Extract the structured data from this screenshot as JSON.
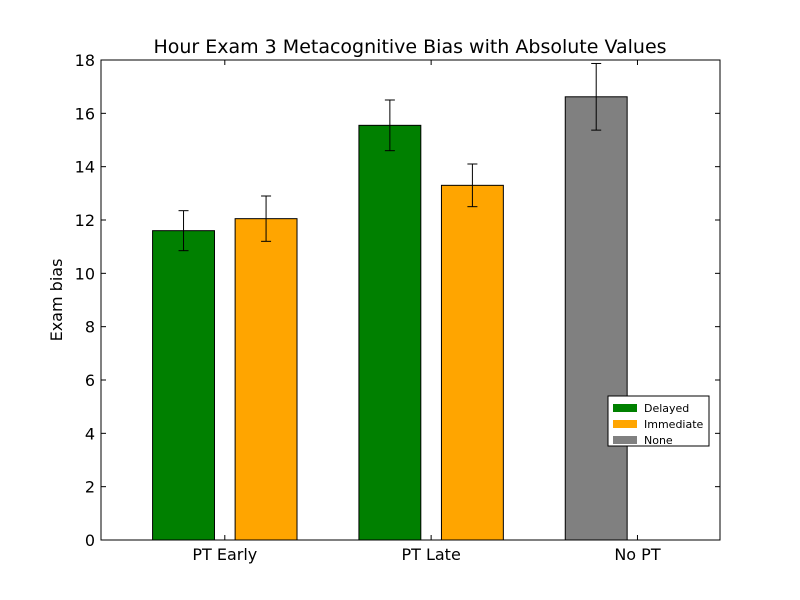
{
  "chart_data": {
    "type": "bar",
    "title": "Hour Exam 3 Metacognitive Bias with Absolute Values",
    "xlabel": "",
    "ylabel": "Exam bias",
    "ylim": [
      0,
      18
    ],
    "yticks": [
      0,
      2,
      4,
      6,
      8,
      10,
      12,
      14,
      16,
      18
    ],
    "categories": [
      "PT Early",
      "PT Late",
      "No PT"
    ],
    "grid": false,
    "legend_position": "lower-right",
    "series": [
      {
        "name": "Delayed",
        "color": "#008000",
        "values": [
          11.6,
          15.55,
          null
        ],
        "errors": [
          0.75,
          0.95,
          null
        ]
      },
      {
        "name": "Immediate",
        "color": "#FFA500",
        "values": [
          12.05,
          13.3,
          null
        ],
        "errors": [
          0.85,
          0.8,
          null
        ]
      },
      {
        "name": "None",
        "color": "#808080",
        "values": [
          null,
          null,
          16.62
        ],
        "errors": [
          null,
          null,
          1.25
        ]
      }
    ]
  }
}
